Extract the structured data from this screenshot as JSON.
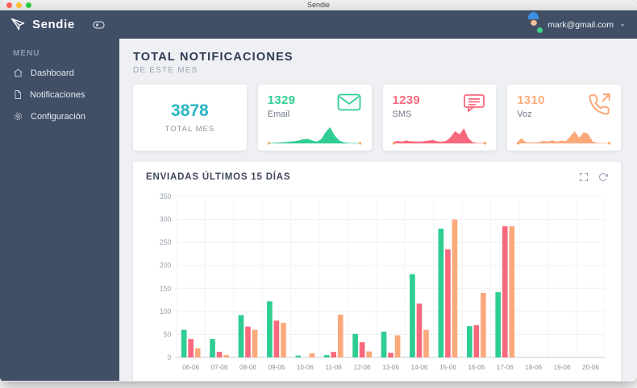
{
  "window": {
    "title": "Sendie"
  },
  "brand": {
    "name": "Sendie"
  },
  "sidebar": {
    "menu_label": "MENU",
    "items": [
      {
        "label": "Dashboard",
        "icon": "home-icon"
      },
      {
        "label": "Notificaciones",
        "icon": "file-icon"
      },
      {
        "label": "Configuración",
        "icon": "gear-icon"
      }
    ]
  },
  "topbar": {
    "user_email": "mark@gmail.com"
  },
  "main": {
    "heading": {
      "title": "TOTAL NOTIFICACIONES",
      "subtitle": "DE ESTE MES"
    },
    "cards": [
      {
        "type": "total",
        "value": "3878",
        "label": "TOTAL MES",
        "accent": "#2AB5C3"
      },
      {
        "type": "stat",
        "value": "1329",
        "label": "Email",
        "accent": "#2FCD92",
        "icon": "envelope-icon",
        "spark": [
          1,
          2,
          3,
          4,
          6,
          8,
          10,
          14,
          20,
          22,
          14,
          8,
          20,
          55,
          80,
          40,
          15,
          5,
          2,
          1,
          1,
          1
        ]
      },
      {
        "type": "stat",
        "value": "1239",
        "label": "SMS",
        "accent": "#F9697E",
        "icon": "chat-bubble-icon",
        "spark": [
          5,
          12,
          8,
          14,
          10,
          9,
          8,
          10,
          14,
          16,
          10,
          8,
          12,
          30,
          60,
          45,
          75,
          25,
          5,
          1,
          1,
          1
        ]
      },
      {
        "type": "stat",
        "value": "1310",
        "label": "Voz",
        "accent": "#FBA97B",
        "icon": "phone-outgoing-icon",
        "spark": [
          2,
          26,
          6,
          3,
          4,
          6,
          12,
          9,
          15,
          8,
          14,
          10,
          35,
          60,
          28,
          55,
          48,
          10,
          2,
          1,
          1,
          1
        ]
      }
    ],
    "panel": {
      "title": "ENVIADAS ÚLTIMOS 15 DÍAS",
      "action_icons": [
        "expand-icon",
        "refresh-icon"
      ]
    }
  },
  "colors": {
    "spark_endpoint": "#F6A45B",
    "sidebar_bg": "#404E66"
  },
  "chart_data": {
    "type": "bar",
    "title": "ENVIADAS ÚLTIMOS 15 DÍAS",
    "categories": [
      "06-06",
      "07-06",
      "08-06",
      "09-06",
      "10-06",
      "11-06",
      "12-06",
      "13-06",
      "14-06",
      "15-06",
      "16-06",
      "17-06",
      "18-06",
      "19-06",
      "20-06"
    ],
    "series": [
      {
        "name": "Email",
        "color": "#2FCD92",
        "values": [
          60,
          40,
          92,
          122,
          4,
          5,
          51,
          56,
          181,
          280,
          68,
          142,
          0,
          0,
          0
        ]
      },
      {
        "name": "SMS",
        "color": "#F9697E",
        "values": [
          40,
          12,
          67,
          80,
          0,
          12,
          33,
          10,
          117,
          235,
          70,
          285,
          0,
          0,
          0
        ]
      },
      {
        "name": "Voz",
        "color": "#FBA97B",
        "values": [
          20,
          5,
          60,
          75,
          9,
          93,
          13,
          48,
          60,
          300,
          140,
          285,
          0,
          0,
          0
        ]
      }
    ],
    "xlabel": "",
    "ylabel": "",
    "ylim": [
      0,
      350
    ],
    "ytick_interval": 50,
    "grid": true,
    "legend_position": "none"
  }
}
